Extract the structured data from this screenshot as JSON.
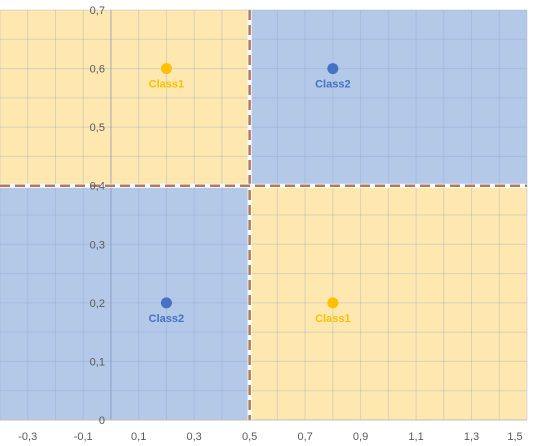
{
  "chart_data": {
    "type": "scatter",
    "xlim": [
      -0.4,
      1.5
    ],
    "ylim": [
      0,
      0.7
    ],
    "x_ticks": [
      "-0,3",
      "-0,1",
      "0,1",
      "0,3",
      "0,5",
      "0,7",
      "0,9",
      "1,1",
      "1,3",
      "1,5"
    ],
    "x_tick_values": [
      -0.3,
      -0.1,
      0.1,
      0.3,
      0.5,
      0.7,
      0.9,
      1.1,
      1.3,
      1.5
    ],
    "y_ticks": [
      "0",
      "0,1",
      "0,2",
      "0,3",
      "0,4",
      "0,5",
      "0,6",
      "0,7"
    ],
    "y_tick_values": [
      0,
      0.1,
      0.2,
      0.3,
      0.4,
      0.5,
      0.6,
      0.7
    ],
    "grid": true,
    "regions": [
      {
        "x": [
          -0.4,
          0.5
        ],
        "y": [
          0.4,
          0.7
        ],
        "color": "#FFE8B0"
      },
      {
        "x": [
          0.5,
          1.5
        ],
        "y": [
          0.4,
          0.7
        ],
        "color": "#B4C8E8"
      },
      {
        "x": [
          -0.4,
          0.5
        ],
        "y": [
          0,
          0.4
        ],
        "color": "#B4C8E8"
      },
      {
        "x": [
          0.5,
          1.5
        ],
        "y": [
          0,
          0.4
        ],
        "color": "#FFE8B0"
      }
    ],
    "boundaries": [
      {
        "orientation": "vertical",
        "value": 0.5
      },
      {
        "orientation": "horizontal",
        "value": 0.4
      }
    ],
    "points": [
      {
        "x": 0.2,
        "y": 0.6,
        "label": "Class1",
        "color": "#FFC000"
      },
      {
        "x": 0.8,
        "y": 0.6,
        "label": "Class2",
        "color": "#4472C4"
      },
      {
        "x": 0.2,
        "y": 0.2,
        "label": "Class2",
        "color": "#4472C4"
      },
      {
        "x": 0.8,
        "y": 0.2,
        "label": "Class1",
        "color": "#FFC000"
      }
    ]
  }
}
